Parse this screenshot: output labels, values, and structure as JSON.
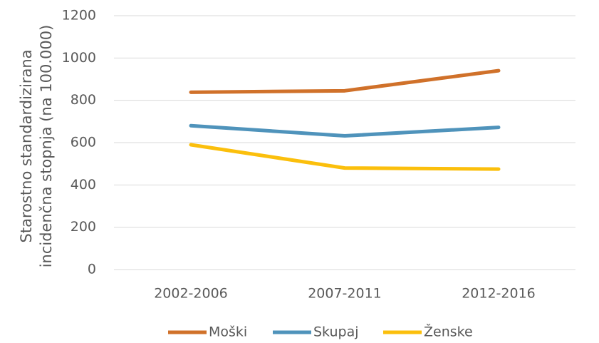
{
  "chart_data": {
    "type": "line",
    "ylabel": [
      "Starostno standardizirana",
      "incidenčna stopnja (na 100.000)"
    ],
    "categories": [
      "2002-2006",
      "2007-2011",
      "2012-2016"
    ],
    "series": [
      {
        "name": "Moški",
        "color": "#d0712a",
        "values": [
          838,
          845,
          940
        ]
      },
      {
        "name": "Skupaj",
        "color": "#4f93bb",
        "values": [
          680,
          632,
          672
        ]
      },
      {
        "name": "Ženske",
        "color": "#fbbf0c",
        "values": [
          590,
          480,
          475
        ]
      }
    ],
    "ylim": [
      0,
      1200
    ],
    "yticks": [
      0,
      200,
      400,
      600,
      800,
      1000,
      1200
    ],
    "grid": true,
    "legend": "bottom"
  }
}
